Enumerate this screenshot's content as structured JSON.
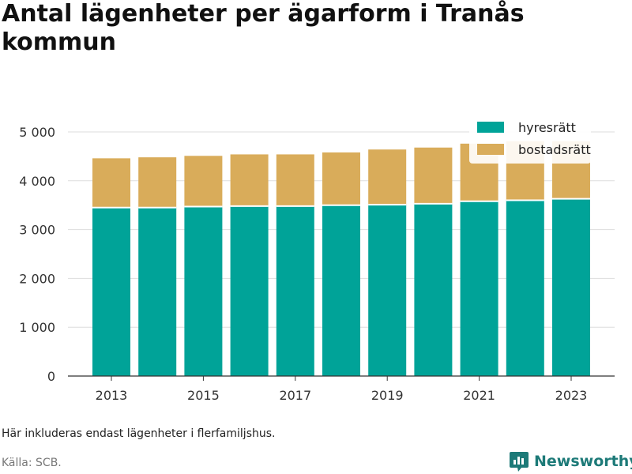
{
  "chart_data": {
    "type": "bar",
    "stacked": true,
    "title": "Antal lägenheter per ägarform i Tranås kommun",
    "categories": [
      "2013",
      "2014",
      "2015",
      "2016",
      "2017",
      "2018",
      "2019",
      "2020",
      "2021",
      "2022",
      "2023"
    ],
    "x_tick_labels": [
      "2013",
      "2015",
      "2017",
      "2019",
      "2021",
      "2023"
    ],
    "series": [
      {
        "name": "hyresrätt",
        "color": "#00a398",
        "values": [
          3450,
          3450,
          3470,
          3480,
          3480,
          3500,
          3510,
          3530,
          3580,
          3600,
          3630
        ]
      },
      {
        "name": "bostadsrätt",
        "color": "#d9ac5a",
        "values": [
          1010,
          1030,
          1040,
          1060,
          1060,
          1080,
          1130,
          1150,
          1180,
          1210,
          1180
        ]
      }
    ],
    "ylim": [
      0,
      5000
    ],
    "y_ticks": [
      0,
      1000,
      2000,
      3000,
      4000,
      5000
    ],
    "y_tick_labels": [
      "0",
      "1 000",
      "2 000",
      "3 000",
      "4 000",
      "5 000"
    ],
    "grid": true,
    "legend_position": "top-right"
  },
  "footer": {
    "note": "Här inkluderas endast lägenheter i flerfamiljshus.",
    "source": "Källa: SCB.",
    "brand": "Newsworthy"
  },
  "colors": {
    "brand": "#1d7a78",
    "grid": "#dddddd"
  },
  "icons": {
    "brand": "bar-chart-chat-bubble-icon"
  }
}
